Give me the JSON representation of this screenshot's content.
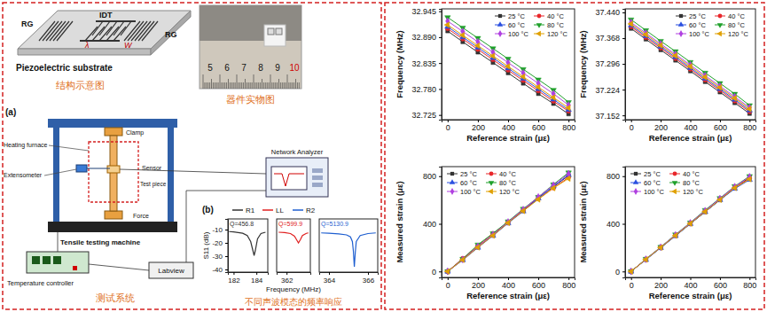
{
  "chart_data": [
    {
      "type": "line",
      "y_label": "S11 (dB)",
      "x": [
        181.6,
        182.0,
        182.4,
        182.8,
        183.2,
        183.5,
        183.7,
        183.8,
        183.9,
        184.1,
        184.4,
        184.8
      ],
      "series": [
        {
          "name": "R1",
          "color": "#333333",
          "line_style": "solid",
          "values": [
            -11.5,
            -11.8,
            -12.2,
            -12.8,
            -14.5,
            -19,
            -26,
            -29.5,
            -26,
            -17,
            -13,
            -12
          ]
        }
      ],
      "xlim": [
        181.5,
        185
      ],
      "xticks": [
        182,
        184
      ],
      "ylim": [
        -42,
        -2
      ],
      "yticks": [
        -10,
        -20,
        -30,
        -40
      ],
      "annotations": [
        "Q=456.8"
      ],
      "legend": "top"
    },
    {
      "type": "line",
      "x_label": "Frequency (MHz)",
      "x": [
        361.6,
        361.9,
        362.2,
        362.4,
        362.5,
        362.6,
        362.7,
        362.8,
        363.0,
        363.1
      ],
      "series": [
        {
          "name": "LL",
          "color": "#e02020",
          "line_style": "solid",
          "values": [
            -12,
            -12.3,
            -13,
            -15,
            -17.5,
            -20,
            -17.5,
            -14.5,
            -12.8,
            -12.5
          ]
        }
      ],
      "xlim": [
        361.5,
        363.2
      ],
      "xticks": [
        362
      ],
      "ylim": [
        -42,
        -2
      ],
      "tick_labels": "x",
      "annotations": [
        "Q=599.9"
      ],
      "legend": "top"
    },
    {
      "type": "line",
      "x": [
        363.6,
        364.0,
        364.5,
        364.9,
        365.1,
        365.2,
        365.25,
        365.3,
        365.35,
        365.4,
        365.6,
        366.0,
        366.4
      ],
      "series": [
        {
          "name": "R2",
          "color": "#1f5fd0",
          "line_style": "solid",
          "values": [
            -12.5,
            -12.8,
            -13.2,
            -14,
            -15.5,
            -19,
            -26,
            -38,
            -27,
            -19,
            -14.5,
            -13,
            -12.5
          ]
        }
      ],
      "xlim": [
        363.5,
        366.5
      ],
      "xticks": [
        364,
        366
      ],
      "ylim": [
        -42,
        -2
      ],
      "tick_labels": "x",
      "annotations": [
        "Q=5130.9"
      ],
      "legend": "top"
    },
    {
      "type": "line",
      "x_label": "Reference strain (με)",
      "y_label": "Frequency (MHz)",
      "x": [
        0,
        100,
        200,
        300,
        400,
        500,
        600,
        700,
        800
      ],
      "xlim": [
        -40,
        840
      ],
      "xticks": [
        0,
        200,
        400,
        600,
        800
      ],
      "ylim": [
        32.715,
        32.95
      ],
      "yticks": [
        32.725,
        {
          "value": 32.78,
          "label": "32.780"
        },
        32.835,
        {
          "value": 32.89,
          "label": "32.890"
        },
        32.945
      ],
      "legend": "upper right",
      "series": [
        {
          "name": "25 °C",
          "color": "#333333",
          "marker": "square",
          "values": [
            32.903,
            32.88,
            32.858,
            32.836,
            32.814,
            32.792,
            32.77,
            32.749,
            32.727
          ]
        },
        {
          "name": "40 °C",
          "color": "#e8262a",
          "marker": "circle",
          "values": [
            32.908,
            32.886,
            32.864,
            32.842,
            32.82,
            32.798,
            32.776,
            32.754,
            32.733
          ]
        },
        {
          "name": "60 °C",
          "color": "#2a4fe0",
          "marker": "triangle-up",
          "values": [
            32.912,
            32.89,
            32.868,
            32.846,
            32.824,
            32.802,
            32.78,
            32.758,
            32.736
          ]
        },
        {
          "name": "80 °C",
          "color": "#1fa02a",
          "marker": "triangle-down",
          "values": [
            32.932,
            32.91,
            32.888,
            32.866,
            32.844,
            32.822,
            32.8,
            32.778,
            32.752
          ]
        },
        {
          "name": "100 °C",
          "color": "#b040e0",
          "marker": "diamond",
          "values": [
            32.924,
            32.902,
            32.88,
            32.858,
            32.836,
            32.814,
            32.792,
            32.77,
            32.746
          ]
        },
        {
          "name": "120 °C",
          "color": "#e0a000",
          "marker": "triangle-left",
          "values": [
            32.916,
            32.894,
            32.872,
            32.85,
            32.828,
            32.806,
            32.784,
            32.762,
            32.74
          ]
        }
      ]
    },
    {
      "type": "line",
      "x_label": "Reference strain (με)",
      "y_label": "Frequency (MHz)",
      "x": [
        0,
        100,
        200,
        300,
        400,
        500,
        600,
        700,
        800
      ],
      "xlim": [
        -40,
        840
      ],
      "xticks": [
        0,
        200,
        400,
        600,
        800
      ],
      "ylim": [
        37.14,
        37.45
      ],
      "yticks": [
        37.152,
        37.224,
        37.296,
        37.368,
        {
          "value": 37.44,
          "label": "37.440"
        }
      ],
      "legend": "upper right",
      "series": [
        {
          "name": "25 °C",
          "color": "#333333",
          "marker": "square",
          "values": [
            37.395,
            37.365,
            37.335,
            37.306,
            37.276,
            37.246,
            37.217,
            37.187,
            37.157
          ]
        },
        {
          "name": "40 °C",
          "color": "#e8262a",
          "marker": "circle",
          "values": [
            37.4,
            37.37,
            37.34,
            37.311,
            37.281,
            37.251,
            37.222,
            37.192,
            37.162
          ]
        },
        {
          "name": "60 °C",
          "color": "#2a4fe0",
          "marker": "triangle-up",
          "values": [
            37.404,
            37.374,
            37.344,
            37.315,
            37.285,
            37.255,
            37.226,
            37.196,
            37.166
          ]
        },
        {
          "name": "80 °C",
          "color": "#1fa02a",
          "marker": "triangle-down",
          "values": [
            37.42,
            37.39,
            37.36,
            37.331,
            37.301,
            37.271,
            37.242,
            37.212,
            37.18
          ]
        },
        {
          "name": "100 °C",
          "color": "#b040e0",
          "marker": "diamond",
          "values": [
            37.412,
            37.382,
            37.352,
            37.323,
            37.293,
            37.263,
            37.234,
            37.204,
            37.174
          ]
        },
        {
          "name": "120 °C",
          "color": "#e0a000",
          "marker": "triangle-left",
          "values": [
            37.408,
            37.378,
            37.348,
            37.319,
            37.289,
            37.259,
            37.23,
            37.2,
            37.17
          ]
        }
      ]
    },
    {
      "type": "line",
      "x_label": "Reference strain (με)",
      "y_label": "Measured strain (με)",
      "x": [
        0,
        100,
        200,
        300,
        400,
        500,
        600,
        700,
        800
      ],
      "xlim": [
        -40,
        840
      ],
      "xticks": [
        0,
        200,
        400,
        600,
        800
      ],
      "ylim": [
        -50,
        880
      ],
      "yticks": [
        0,
        400,
        800
      ],
      "legend": "upper left",
      "series": [
        {
          "name": "25 °C",
          "color": "#333333",
          "marker": "square",
          "values": [
            0,
            102,
            205,
            305,
            410,
            510,
            620,
            710,
            805
          ]
        },
        {
          "name": "40 °C",
          "color": "#e8262a",
          "marker": "circle",
          "values": [
            0,
            110,
            215,
            318,
            415,
            515,
            610,
            700,
            790
          ]
        },
        {
          "name": "60 °C",
          "color": "#2a4fe0",
          "marker": "triangle-up",
          "values": [
            0,
            95,
            200,
            300,
            405,
            505,
            615,
            715,
            810
          ]
        },
        {
          "name": "80 °C",
          "color": "#1fa02a",
          "marker": "triangle-down",
          "values": [
            0,
            105,
            225,
            320,
            420,
            525,
            625,
            730,
            830
          ]
        },
        {
          "name": "100 °C",
          "color": "#b040e0",
          "marker": "diamond",
          "values": [
            0,
            100,
            210,
            310,
            415,
            520,
            625,
            725,
            820
          ]
        },
        {
          "name": "120 °C",
          "color": "#e0a000",
          "marker": "triangle-left",
          "values": [
            0,
            98,
            202,
            302,
            408,
            508,
            605,
            700,
            780
          ]
        }
      ]
    },
    {
      "type": "line",
      "x_label": "Reference strain (με)",
      "y_label": "Measured strain (με)",
      "x": [
        0,
        100,
        200,
        300,
        400,
        500,
        600,
        700,
        800
      ],
      "xlim": [
        -40,
        840
      ],
      "xticks": [
        0,
        200,
        400,
        600,
        800
      ],
      "ylim": [
        -50,
        880
      ],
      "yticks": [
        0,
        400,
        800
      ],
      "legend": "upper left",
      "series": [
        {
          "name": "25 °C",
          "color": "#333333",
          "marker": "square",
          "values": [
            0,
            100,
            200,
            300,
            400,
            500,
            600,
            700,
            790
          ]
        },
        {
          "name": "40 °C",
          "color": "#e8262a",
          "marker": "circle",
          "values": [
            0,
            102,
            203,
            305,
            405,
            505,
            605,
            705,
            780
          ]
        },
        {
          "name": "60 °C",
          "color": "#2a4fe0",
          "marker": "triangle-up",
          "values": [
            0,
            98,
            198,
            298,
            400,
            500,
            600,
            695,
            770
          ]
        },
        {
          "name": "80 °C",
          "color": "#1fa02a",
          "marker": "triangle-down",
          "values": [
            0,
            105,
            205,
            310,
            410,
            515,
            615,
            715,
            800
          ]
        },
        {
          "name": "100 °C",
          "color": "#b040e0",
          "marker": "diamond",
          "values": [
            0,
            103,
            204,
            307,
            408,
            510,
            612,
            712,
            795
          ]
        },
        {
          "name": "120 °C",
          "color": "#e0a000",
          "marker": "triangle-left",
          "values": [
            0,
            101,
            201,
            302,
            402,
            502,
            602,
            702,
            775
          ]
        }
      ]
    }
  ],
  "diagram": {
    "schematic": {
      "rg_left": "RG",
      "idt": "IDT",
      "rg_right": "RG",
      "wavelength": "λ",
      "aperture": "W",
      "substrate": "Piezoelectric substrate",
      "caption": "结构示意图"
    },
    "photo": {
      "ruler_numbers": [
        "5",
        "6",
        "7",
        "8",
        "9",
        "10"
      ],
      "caption": "器件实物图"
    },
    "test_system": {
      "panel_label": "(a)",
      "heating_furnace": "Heating furnace",
      "clamp": "Clamp",
      "extensometer": "Extensometer",
      "sensor": "Sensor",
      "test_piece": "Test piece",
      "force": "Force",
      "machine": "Tensile testing machine",
      "network_analyzer": "Network Analyzer",
      "labview": "Labview",
      "temperature_controller": "Temperature controller",
      "caption": "测试系统"
    },
    "panel_b": {
      "label": "(b)",
      "caption": "不同声波模态的频率响应"
    }
  }
}
